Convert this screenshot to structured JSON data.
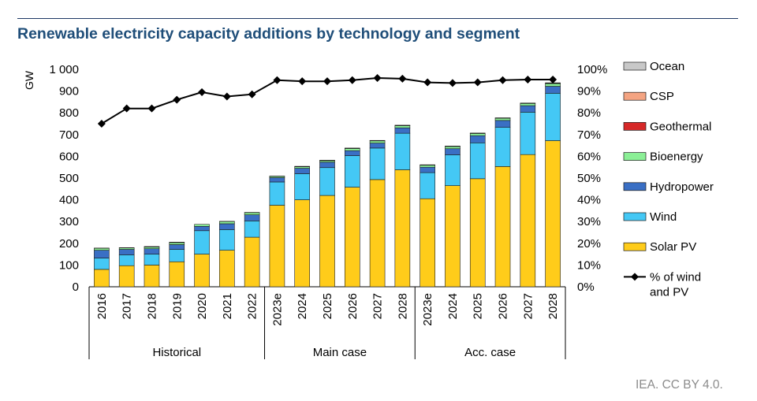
{
  "header": {
    "title": "Renewable electricity capacity additions by technology and segment",
    "source": "IEA. CC BY 4.0."
  },
  "chart_data": {
    "type": "bar",
    "stacked": true,
    "ylabel": "GW",
    "ylim": [
      0,
      1000
    ],
    "y_ticks": [
      "0",
      "100",
      "200",
      "300",
      "400",
      "500",
      "600",
      "700",
      "800",
      "900",
      "1 000"
    ],
    "y2lim": [
      0,
      100
    ],
    "y2_ticks": [
      "0%",
      "10%",
      "20%",
      "30%",
      "40%",
      "50%",
      "60%",
      "70%",
      "80%",
      "90%",
      "100%"
    ],
    "categories": [
      "2016",
      "2017",
      "2018",
      "2019",
      "2020",
      "2021",
      "2022",
      "2023e",
      "2024",
      "2025",
      "2026",
      "2027",
      "2028",
      "2023e",
      "2024",
      "2025",
      "2026",
      "2027",
      "2028"
    ],
    "groups": [
      {
        "label": "Historical",
        "start": 0,
        "end": 6
      },
      {
        "label": "Main case",
        "start": 7,
        "end": 12
      },
      {
        "label": "Acc. case",
        "start": 13,
        "end": 18
      }
    ],
    "series": [
      {
        "name": "Solar PV",
        "color": "#ffcc1a",
        "values": [
          80,
          97,
          100,
          115,
          150,
          168,
          228,
          375,
          400,
          420,
          458,
          493,
          538,
          405,
          465,
          497,
          553,
          608,
          672
        ]
      },
      {
        "name": "Wind",
        "color": "#44c8f5",
        "values": [
          52,
          50,
          50,
          57,
          108,
          95,
          75,
          107,
          120,
          128,
          145,
          145,
          168,
          120,
          142,
          165,
          180,
          195,
          218
        ]
      },
      {
        "name": "Hydropower",
        "color": "#3a6fc4",
        "values": [
          36,
          25,
          25,
          22,
          20,
          27,
          28,
          20,
          25,
          25,
          23,
          23,
          25,
          25,
          28,
          33,
          32,
          30,
          32
        ]
      },
      {
        "name": "Bioenergy",
        "color": "#8bef96",
        "values": [
          9,
          7,
          8,
          9,
          9,
          10,
          10,
          6,
          7,
          7,
          10,
          10,
          10,
          9,
          10,
          10,
          10,
          10,
          12
        ]
      },
      {
        "name": "Geothermal",
        "color": "#d62828",
        "values": [
          1,
          1,
          1,
          1,
          0,
          1,
          1,
          1,
          1,
          1,
          1,
          1,
          1,
          1,
          1,
          1,
          1,
          1,
          2
        ]
      },
      {
        "name": "CSP",
        "color": "#f4a482",
        "values": [
          0,
          0,
          1,
          1,
          0,
          0,
          0,
          0,
          1,
          1,
          1,
          1,
          1,
          1,
          1,
          1,
          1,
          1,
          2
        ]
      },
      {
        "name": "Ocean",
        "color": "#c8c8c8",
        "values": [
          0,
          0,
          0,
          0,
          0,
          0,
          0,
          0,
          0,
          0,
          0,
          0,
          0,
          0,
          0,
          0,
          0,
          0,
          0
        ]
      }
    ],
    "line_series": {
      "name": "% of wind and PV",
      "axis": "right",
      "color": "#000000",
      "values": [
        75,
        82,
        82,
        86,
        89.5,
        87.5,
        88.5,
        95,
        94.5,
        94.5,
        95,
        96,
        95.7,
        94,
        93.7,
        94,
        95,
        95.3,
        95.3
      ]
    },
    "legend": {
      "position": "right",
      "items": [
        {
          "label": "Ocean",
          "color": "#c8c8c8"
        },
        {
          "label": "CSP",
          "color": "#f4a482"
        },
        {
          "label": "Geothermal",
          "color": "#d62828"
        },
        {
          "label": "Bioenergy",
          "color": "#8bef96"
        },
        {
          "label": "Hydropower",
          "color": "#3a6fc4"
        },
        {
          "label": "Wind",
          "color": "#44c8f5"
        },
        {
          "label": "Solar PV",
          "color": "#ffcc1a"
        },
        {
          "label_lines": [
            "% of wind",
            "and PV"
          ],
          "marker": "line-diamond",
          "color": "#000000"
        }
      ]
    },
    "grid": false
  }
}
